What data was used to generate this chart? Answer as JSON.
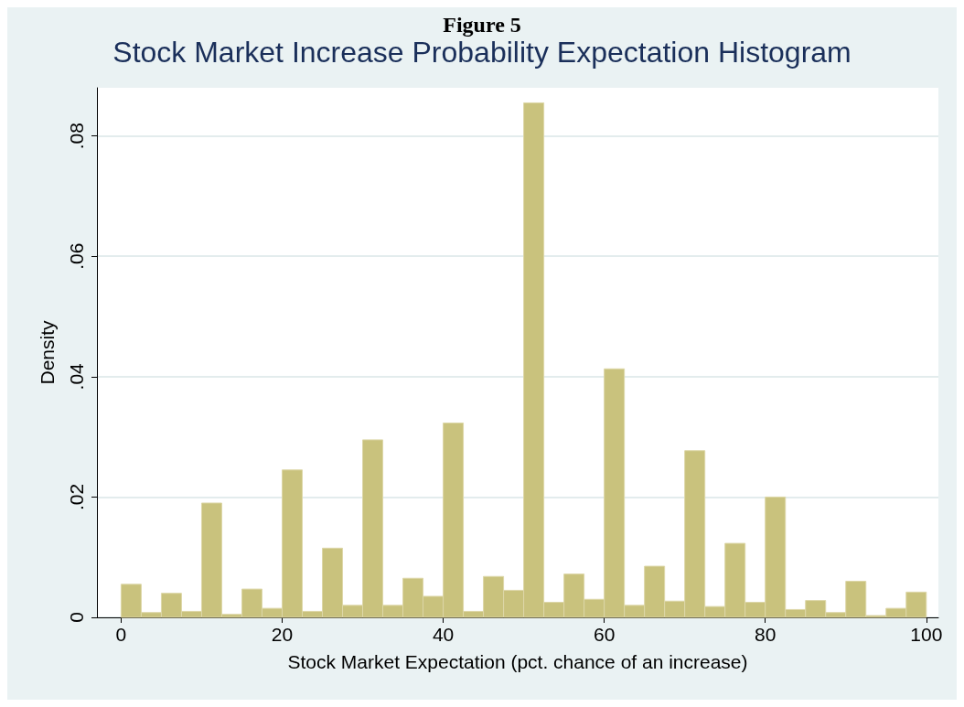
{
  "chart_data": {
    "type": "histogram",
    "title": "Stock Market Increase Probability Expectation Histogram",
    "annotations": [
      "Figure 5"
    ],
    "xlabel": "Stock Market Expectation (pct. chance of an increase)",
    "ylabel": "Density",
    "bins": [
      0,
      2.5,
      5,
      7.5,
      10,
      12.5,
      15,
      17.5,
      20,
      22.5,
      25,
      27.5,
      30,
      32.5,
      35,
      37.5,
      40,
      42.5,
      45,
      47.5,
      50,
      52.5,
      55,
      57.5,
      60,
      62.5,
      65,
      67.5,
      70,
      72.5,
      75,
      77.5,
      80,
      82.5,
      85,
      87.5,
      90,
      92.5,
      95,
      97.5,
      100
    ],
    "values": [
      0.0055,
      0.0008,
      0.004,
      0.001,
      0.019,
      0.0005,
      0.0047,
      0.0015,
      0.0245,
      0.001,
      0.0115,
      0.002,
      0.0295,
      0.002,
      0.0065,
      0.0035,
      0.0323,
      0.001,
      0.0068,
      0.0045,
      0.0855,
      0.0025,
      0.0072,
      0.003,
      0.0413,
      0.002,
      0.0085,
      0.0027,
      0.0277,
      0.0018,
      0.0123,
      0.0025,
      0.02,
      0.0013,
      0.0028,
      0.0008,
      0.006,
      0.0003,
      0.0015,
      0.0042
    ],
    "color": "#c9c27d",
    "xlim": [
      -3,
      101.5
    ],
    "xticks": [
      0,
      20,
      40,
      60,
      80,
      100
    ],
    "ylim": [
      0,
      0.088
    ],
    "yticks": [
      {
        "value": 0,
        "label": "0"
      },
      {
        "value": 0.02,
        "label": ".02"
      },
      {
        "value": 0.04,
        "label": ".04"
      },
      {
        "value": 0.06,
        "label": ".06"
      },
      {
        "value": 0.08,
        "label": ".08"
      }
    ],
    "grid": "y"
  }
}
